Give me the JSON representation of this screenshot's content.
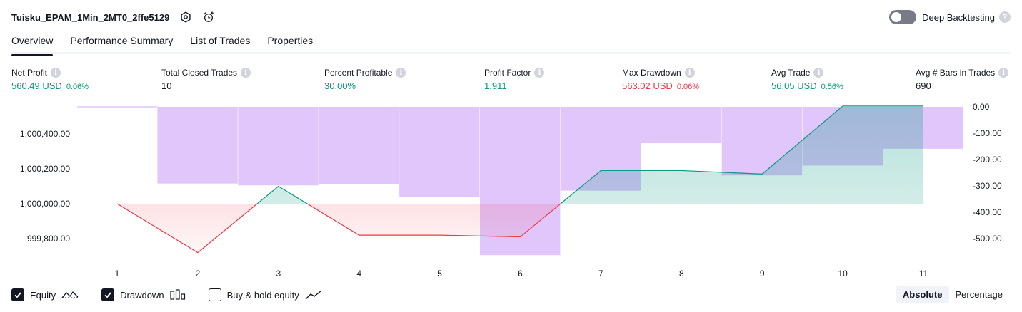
{
  "header": {
    "strategy_name": "Tuisku_EPAM_1Min_2MT0_2ffe5129",
    "settings_icon": "hexagon-gear-icon",
    "alert_icon": "alarm-clock-plus-icon",
    "deep_backtesting_label": "Deep Backtesting",
    "deep_backtesting_enabled": false,
    "help_glyph": "?"
  },
  "tabs": [
    {
      "label": "Overview",
      "active": true
    },
    {
      "label": "Performance Summary",
      "active": false
    },
    {
      "label": "List of Trades",
      "active": false
    },
    {
      "label": "Properties",
      "active": false
    }
  ],
  "info_glyph": "i",
  "metrics": {
    "net_profit": {
      "label": "Net Profit",
      "value": "560.49 USD",
      "pct": "0.06%"
    },
    "total_closed_trades": {
      "label": "Total Closed Trades",
      "value": "10"
    },
    "percent_profitable": {
      "label": "Percent Profitable",
      "value": "30.00%"
    },
    "profit_factor": {
      "label": "Profit Factor",
      "value": "1.911"
    },
    "max_drawdown": {
      "label": "Max Drawdown",
      "value": "563.02 USD",
      "pct": "0.06%"
    },
    "avg_trade": {
      "label": "Avg Trade",
      "value": "56.05 USD",
      "pct": "0.56%"
    },
    "avg_bars": {
      "label": "Avg # Bars in Trades",
      "value": "690"
    }
  },
  "chart_data": {
    "type": "line+bar",
    "x_ticks": [
      "1",
      "2",
      "3",
      "4",
      "5",
      "6",
      "7",
      "8",
      "9",
      "10",
      "11"
    ],
    "left_axis_ticks": [
      "1,000,400.00",
      "1,000,200.00",
      "1,000,000.00",
      "999,800.00"
    ],
    "right_axis_ticks": [
      "0.00",
      "-100.00",
      "-200.00",
      "-300.00",
      "-400.00",
      "-500.00"
    ],
    "equity_baseline": 1000000,
    "equity": [
      {
        "x": 1,
        "y": 1000000
      },
      {
        "x": 2,
        "y": 999720
      },
      {
        "x": 3,
        "y": 1000100
      },
      {
        "x": 4,
        "y": 999820
      },
      {
        "x": 5,
        "y": 999820
      },
      {
        "x": 6,
        "y": 999810
      },
      {
        "x": 7,
        "y": 1000190
      },
      {
        "x": 8,
        "y": 1000190
      },
      {
        "x": 9,
        "y": 1000170
      },
      {
        "x": 10,
        "y": 1000560
      },
      {
        "x": 11,
        "y": 1000560
      }
    ],
    "drawdown": [
      {
        "x": 1,
        "y": 0
      },
      {
        "x": 2,
        "y": -291
      },
      {
        "x": 3,
        "y": -298
      },
      {
        "x": 4,
        "y": -292
      },
      {
        "x": 5,
        "y": -341
      },
      {
        "x": 6,
        "y": -563
      },
      {
        "x": 7,
        "y": -318
      },
      {
        "x": 8,
        "y": -138
      },
      {
        "x": 9,
        "y": -260
      },
      {
        "x": 10,
        "y": -223
      },
      {
        "x": 11,
        "y": -159
      }
    ],
    "colors": {
      "equity_up": "#089981",
      "equity_down": "#f23645",
      "drawdown_bar": "#e1c6fc"
    }
  },
  "legend": {
    "equity": {
      "label": "Equity",
      "checked": true,
      "icon": "equity-line-icon"
    },
    "drawdown": {
      "label": "Drawdown",
      "checked": true,
      "icon": "drawdown-bars-icon"
    },
    "buy_hold": {
      "label": "Buy & hold equity",
      "checked": false,
      "icon": "buy-hold-line-icon"
    }
  },
  "modes": [
    {
      "label": "Absolute",
      "active": true
    },
    {
      "label": "Percentage",
      "active": false
    }
  ]
}
